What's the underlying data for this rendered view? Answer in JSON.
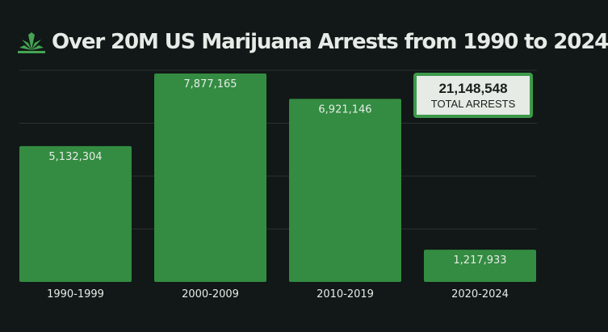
{
  "colors": {
    "background": "#111817",
    "bar": "#338c41",
    "grid": "#2a312d",
    "text_light": "#e6ebe7",
    "box_fill": "#e6ebe5",
    "box_border": "#3d9a4b"
  },
  "logo": {
    "icon": "cannabis-leaf-icon"
  },
  "total": {
    "value": "21,148,548",
    "label": "TOTAL ARRESTS"
  },
  "chart_data": {
    "type": "bar",
    "title": "Over 20M US Marijuana Arrests from 1990 to 2024",
    "xlabel": "",
    "ylabel": "",
    "categories": [
      "1990-1999",
      "2000-2009",
      "2010-2019",
      "2020-2024"
    ],
    "values": [
      5132304,
      7877165,
      6921146,
      1217933
    ],
    "value_labels": [
      "5,132,304",
      "7,877,165",
      "6,921,146",
      "1,217,933"
    ],
    "ylim": [
      0,
      8000000
    ],
    "grid": true,
    "legend": "none"
  }
}
